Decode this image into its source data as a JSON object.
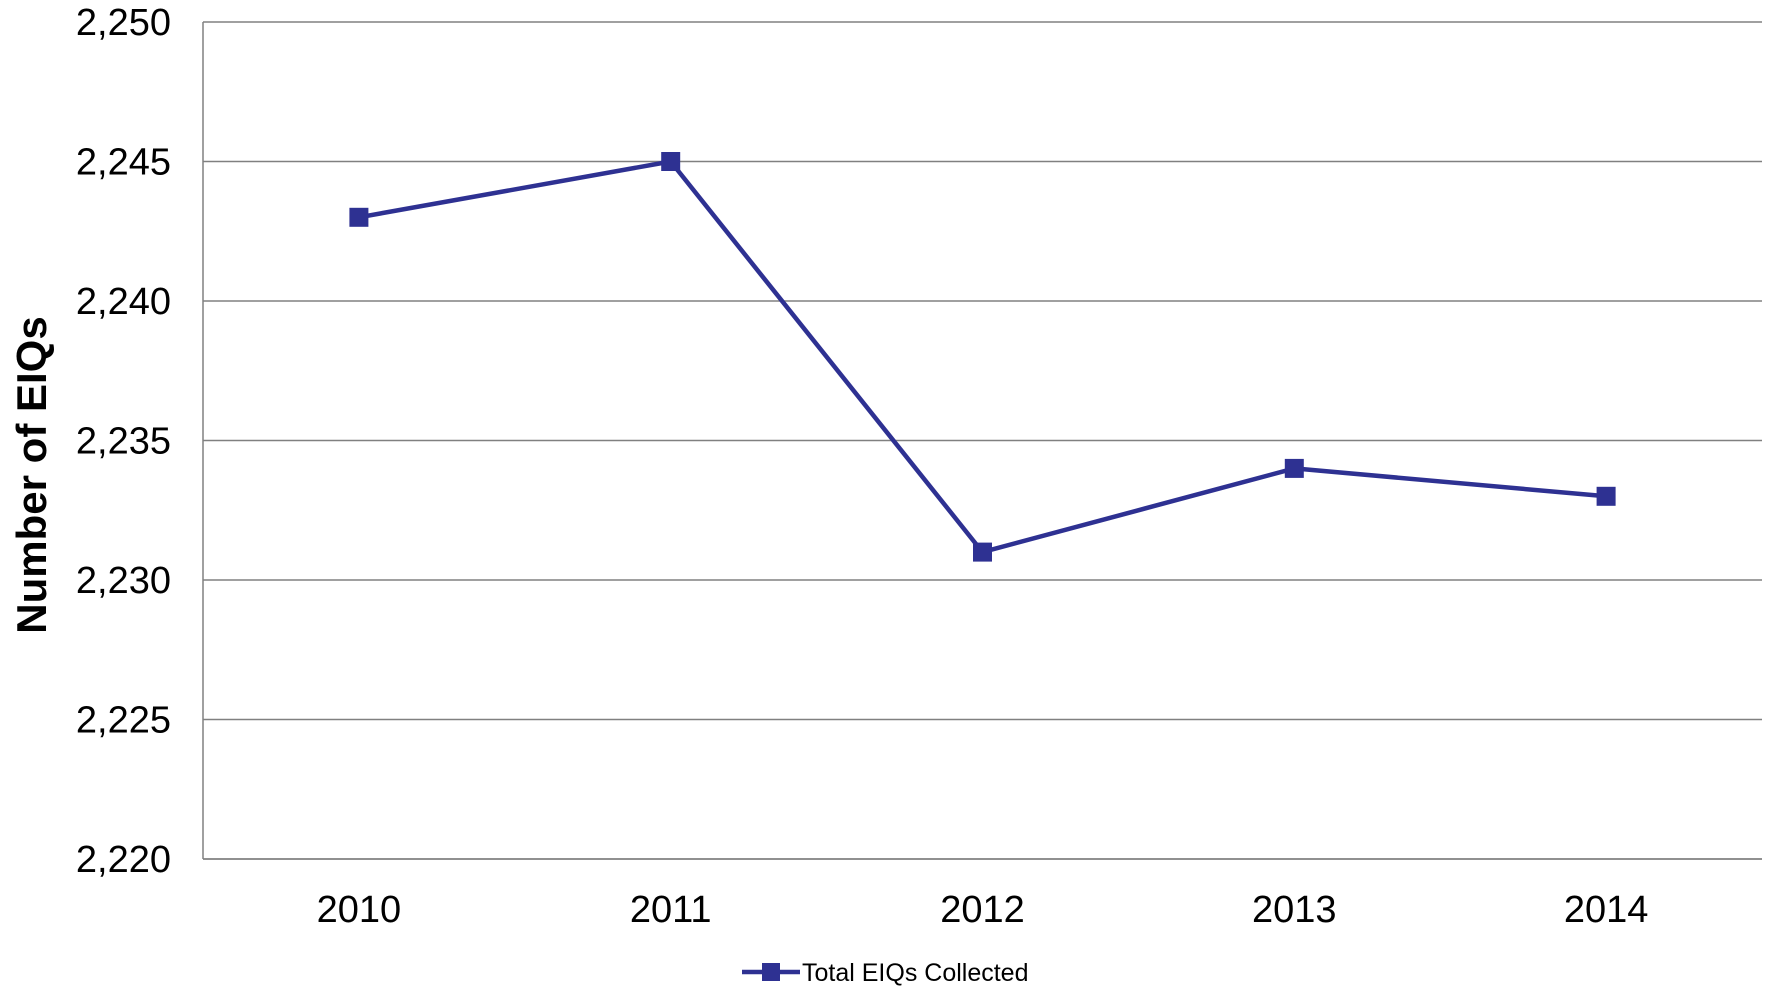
{
  "chart_data": {
    "type": "line",
    "categories": [
      "2010",
      "2011",
      "2012",
      "2013",
      "2014"
    ],
    "series": [
      {
        "name": "Total EIQs Collected",
        "values": [
          2243,
          2245,
          2231,
          2234,
          2233
        ],
        "color": "#2e3192",
        "marker": "square"
      }
    ],
    "title": "",
    "xlabel": "",
    "ylabel": "Number of EIQs",
    "ylim": [
      2220,
      2250
    ],
    "yticks": [
      2220,
      2225,
      2230,
      2235,
      2240,
      2245,
      2250
    ],
    "ytick_labels": [
      "2,220",
      "2,225",
      "2,230",
      "2,235",
      "2,240",
      "2,245",
      "2,250"
    ],
    "grid": true,
    "legend_position": "bottom-center"
  }
}
